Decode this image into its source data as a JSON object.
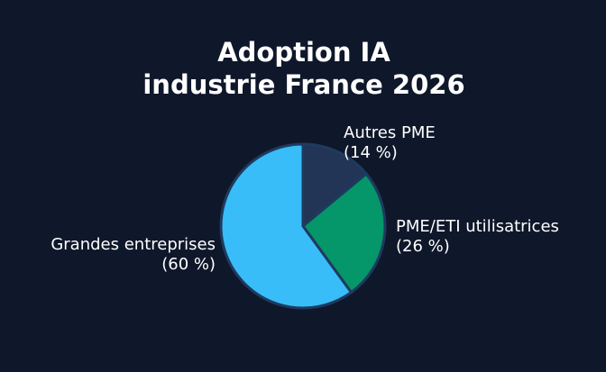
{
  "chart_data": {
    "type": "pie",
    "title_lines": [
      "Adoption IA",
      "industrie France 2026"
    ],
    "labels": [
      "Autres PME",
      "PME/ETI utilisatrices",
      "Grandes entreprises"
    ],
    "values": [
      14,
      26,
      60
    ],
    "value_labels": [
      "(14 %)",
      "(26 %)",
      "(60 %)"
    ],
    "colors": [
      "#233556",
      "#059669",
      "#38bdf8"
    ],
    "start": "top",
    "direction": "clockwise",
    "background": "#0f172a",
    "edge_color": "#1e3a5f"
  }
}
